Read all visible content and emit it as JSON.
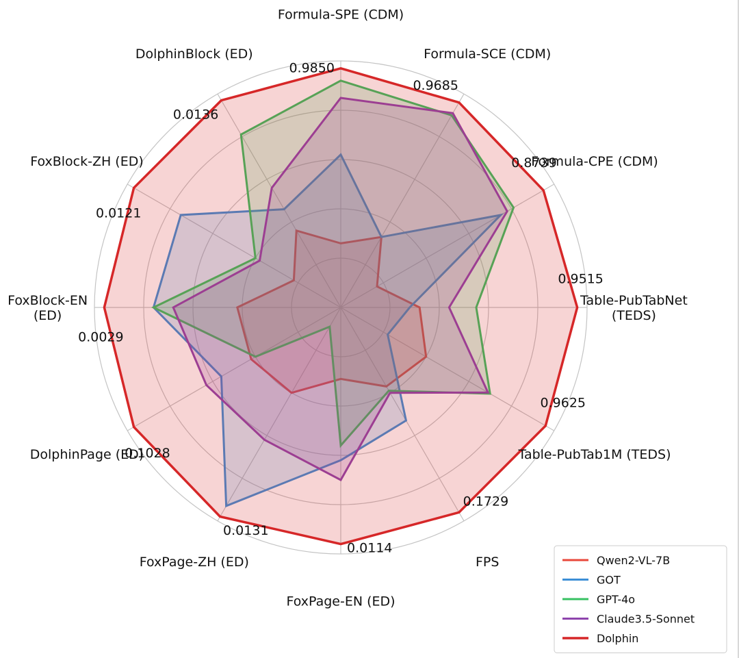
{
  "chart_data": {
    "type": "radar",
    "title": "",
    "axes": [
      {
        "label": "Formula-SPE (CDM)",
        "value_label": "0.9850"
      },
      {
        "label": "Formula-SCE (CDM)",
        "value_label": "0.9685"
      },
      {
        "label": "Formula-CPE (CDM)",
        "value_label": "0.8739"
      },
      {
        "label": "Table-PubTabNet\n(TEDS)",
        "value_label": "0.9515"
      },
      {
        "label": "Table-PubTab1M (TEDS)",
        "value_label": "0.9625"
      },
      {
        "label": "FPS",
        "value_label": "0.1729"
      },
      {
        "label": "FoxPage-EN (ED)",
        "value_label": "0.0114"
      },
      {
        "label": "FoxPage-ZH (ED)",
        "value_label": "0.0131"
      },
      {
        "label": "DolphinPage (ED)",
        "value_label": "0.1028"
      },
      {
        "label": "FoxBlock-EN\n(ED)",
        "value_label": "0.0029"
      },
      {
        "label": "FoxBlock-ZH (ED)",
        "value_label": "0.0121"
      },
      {
        "label": "DolphinBlock (ED)",
        "value_label": "0.0136"
      }
    ],
    "rlim": [
      0,
      1
    ],
    "grid": true,
    "legend_position": "bottom-right",
    "series": [
      {
        "name": "Qwen2-VL-7B",
        "color": "#e8483b",
        "values": [
          0.26,
          0.33,
          0.17,
          0.32,
          0.4,
          0.37,
          0.29,
          0.4,
          0.42,
          0.42,
          0.22,
          0.36
        ]
      },
      {
        "name": "GOT",
        "color": "#3c8fd6",
        "values": [
          0.62,
          0.33,
          0.75,
          0.28,
          0.22,
          0.53,
          0.62,
          0.93,
          0.56,
          0.76,
          0.75,
          0.46
        ]
      },
      {
        "name": "GPT-4o",
        "color": "#37c162",
        "values": [
          0.92,
          0.9,
          0.81,
          0.55,
          0.7,
          0.39,
          0.56,
          0.09,
          0.4,
          0.76,
          0.4,
          0.81
        ]
      },
      {
        "name": "Claude3.5-Sonnet",
        "color": "#8e44ad",
        "values": [
          0.85,
          0.91,
          0.78,
          0.44,
          0.69,
          0.4,
          0.7,
          0.62,
          0.63,
          0.68,
          0.38,
          0.56
        ]
      },
      {
        "name": "Dolphin",
        "color": "#d62728",
        "values": [
          0.97,
          0.96,
          0.95,
          0.96,
          0.96,
          0.96,
          0.96,
          0.98,
          0.97,
          0.96,
          0.97,
          0.97
        ]
      }
    ]
  }
}
